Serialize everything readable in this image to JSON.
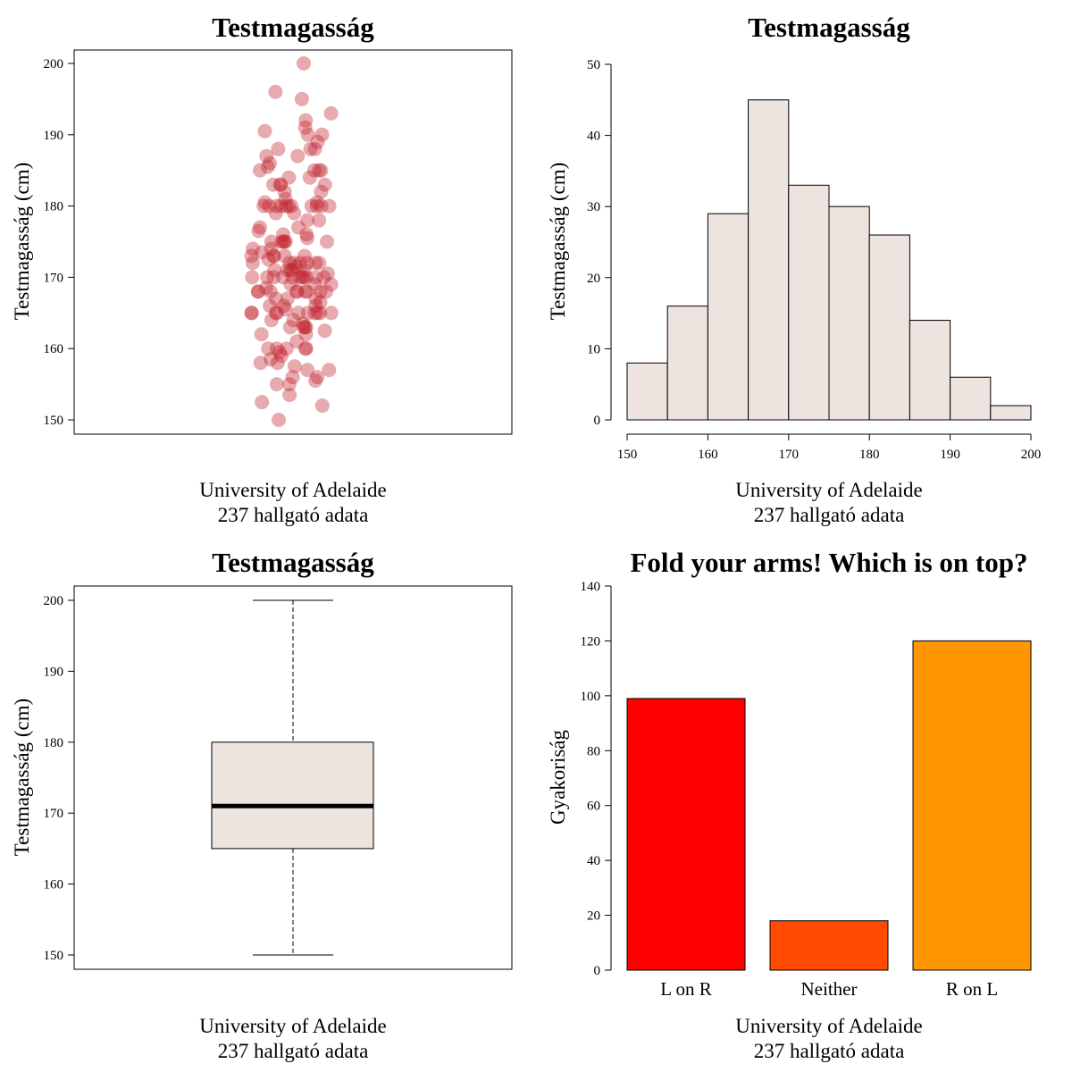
{
  "chart_data": [
    {
      "type": "scatter",
      "title": "Testmagasság",
      "ylabel": "Testmagasság (cm)",
      "xlabel": "",
      "xcaption_line1": "University of Adelaide",
      "xcaption_line2": "237 hallgató adata",
      "ylim": [
        150,
        200
      ],
      "yticks": [
        "150",
        "160",
        "170",
        "180",
        "190",
        "200"
      ],
      "point_color": "#c0202a",
      "grid": false,
      "y": [
        200,
        196,
        195,
        193,
        192,
        191,
        190.5,
        190,
        190,
        189,
        188,
        188,
        188,
        187,
        187,
        186,
        185.5,
        185,
        185,
        185,
        185,
        184,
        184,
        183,
        183,
        183,
        183,
        182,
        182,
        181,
        180.5,
        180.5,
        180,
        180,
        180,
        180,
        180,
        180,
        180,
        180,
        180,
        180,
        180,
        179,
        179,
        178,
        178,
        177,
        177,
        176.5,
        176,
        176,
        175.5,
        175,
        175,
        175,
        175,
        175,
        175,
        174,
        174,
        173.5,
        173,
        173,
        173,
        173,
        173,
        172.5,
        172,
        172,
        172,
        172,
        172,
        172,
        172,
        171.5,
        171,
        171,
        171,
        171,
        171,
        170.5,
        170,
        170,
        170,
        170,
        170,
        170,
        170,
        170,
        170,
        170,
        170,
        169,
        169,
        169,
        168.5,
        168,
        168,
        168,
        168,
        168,
        168,
        168,
        168,
        168,
        167,
        167,
        167,
        166.5,
        166,
        166,
        166,
        165.5,
        165,
        165,
        165,
        165,
        165,
        165,
        165,
        165,
        165,
        165,
        164,
        164,
        163.5,
        163,
        163,
        163,
        163,
        162.5,
        162,
        162,
        161,
        160,
        160,
        160,
        160,
        160,
        159.5,
        159,
        158.5,
        158,
        158,
        157.5,
        157,
        157,
        156,
        156,
        155.5,
        155,
        155,
        153.5,
        152.5,
        152,
        150
      ]
    },
    {
      "type": "bar",
      "subtype": "histogram",
      "title": "Testmagasság",
      "ylabel": "Testmagasság (cm)",
      "xcaption_line1": "University of Adelaide",
      "xcaption_line2": "237 hallgató adata",
      "bins": [
        [
          150,
          155
        ],
        [
          155,
          160
        ],
        [
          160,
          165
        ],
        [
          165,
          170
        ],
        [
          170,
          175
        ],
        [
          175,
          180
        ],
        [
          180,
          185
        ],
        [
          185,
          190
        ],
        [
          190,
          195
        ],
        [
          195,
          200
        ]
      ],
      "values": [
        8,
        16,
        29,
        45,
        33,
        30,
        26,
        14,
        6,
        2
      ],
      "xlim": [
        150,
        200
      ],
      "ylim": [
        0,
        50
      ],
      "xticks": [
        "150",
        "160",
        "170",
        "180",
        "190",
        "200"
      ],
      "yticks": [
        "0",
        "10",
        "20",
        "30",
        "40",
        "50"
      ],
      "bar_color": "#ede4df"
    },
    {
      "type": "boxplot",
      "title": "Testmagasság",
      "ylabel": "Testmagasság (cm)",
      "xcaption_line1": "University of Adelaide",
      "xcaption_line2": "237 hallgató adata",
      "whisker_low": 150,
      "q1": 165,
      "median": 171,
      "q3": 180,
      "whisker_high": 200,
      "ylim": [
        150,
        200
      ],
      "yticks": [
        "150",
        "160",
        "170",
        "180",
        "190",
        "200"
      ],
      "box_color": "#ede4df"
    },
    {
      "type": "bar",
      "title": "Fold your arms! Which is on top?",
      "ylabel": "Gyakoriság",
      "xcaption_line1": "University of Adelaide",
      "xcaption_line2": "237 hallgató adata",
      "categories": [
        "L on R",
        "Neither",
        "R on L"
      ],
      "values": [
        99,
        18,
        120
      ],
      "colors": [
        "#ff0000",
        "#ff4a00",
        "#ff9500"
      ],
      "ylim": [
        0,
        140
      ],
      "yticks": [
        "0",
        "20",
        "40",
        "60",
        "80",
        "100",
        "120",
        "140"
      ]
    }
  ]
}
